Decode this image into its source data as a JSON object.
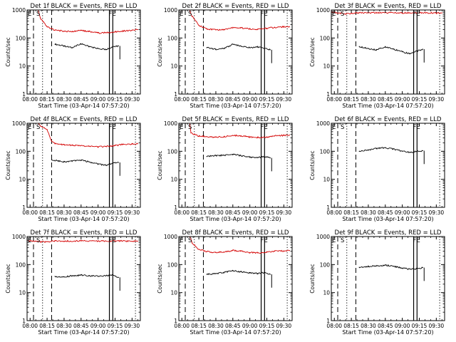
{
  "colors": {
    "events": "#000000",
    "lld": "#d40000",
    "axis": "#000000",
    "marker": "#000000"
  },
  "common": {
    "xlabel": "Start Time (03-Apr-14 07:57:20)",
    "ylabel": "Counts/sec",
    "xticklabels": [
      "08:00",
      "08:15",
      "08:30",
      "08:45",
      "09:00",
      "09:15",
      "09:30"
    ],
    "yticklabels": [
      "1",
      "10",
      "100",
      "1000"
    ],
    "marker_labels": [
      "E",
      "S",
      "FE"
    ]
  },
  "chart_data": [
    {
      "type": "line",
      "title": "Det 1f BLACK = Events, RED = LLD",
      "xlabel": "Start Time (03-Apr-14 07:57:20)",
      "ylabel": "Counts/sec",
      "yscale": "log",
      "ylim": [
        1,
        1000
      ],
      "x_ticks": [
        "08:00",
        "08:15",
        "08:30",
        "08:45",
        "09:00",
        "09:15",
        "09:30"
      ],
      "series": [
        {
          "name": "Events",
          "color": "#000000",
          "x": [
            "08:22",
            "08:30",
            "08:37",
            "08:45",
            "08:52",
            "09:00",
            "09:07",
            "09:13",
            "09:18"
          ],
          "values": [
            60,
            52,
            45,
            62,
            50,
            42,
            38,
            48,
            52
          ]
        },
        {
          "name": "LLD",
          "color": "#d40000",
          "x": [
            "08:07",
            "08:09",
            "08:15",
            "08:22",
            "08:30",
            "08:37",
            "08:45",
            "08:52",
            "09:00",
            "09:07",
            "09:15",
            "09:22",
            "09:30",
            "09:35"
          ],
          "values": [
            1000,
            520,
            250,
            190,
            175,
            168,
            185,
            170,
            152,
            155,
            165,
            178,
            188,
            200
          ]
        }
      ],
      "vlines": [
        {
          "x": "08:03",
          "style": "dashed"
        },
        {
          "x": "08:11",
          "style": "dotted"
        },
        {
          "x": "08:19",
          "style": "dashed"
        },
        {
          "x": "09:10",
          "style": "solid"
        },
        {
          "x": "09:13",
          "style": "solid"
        },
        {
          "x": "09:33",
          "style": "dotted"
        }
      ]
    },
    {
      "type": "line",
      "title": "Det 2f BLACK = Events, RED = LLD",
      "xlabel": "Start Time (03-Apr-14 07:57:20)",
      "ylabel": "Counts/sec",
      "yscale": "log",
      "ylim": [
        1,
        1000
      ],
      "x_ticks": [
        "08:00",
        "08:15",
        "08:30",
        "08:45",
        "09:00",
        "09:15",
        "09:30"
      ],
      "series": [
        {
          "name": "Events",
          "color": "#000000",
          "x": [
            "08:22",
            "08:30",
            "08:37",
            "08:45",
            "08:52",
            "09:00",
            "09:07",
            "09:13",
            "09:18"
          ],
          "values": [
            45,
            40,
            42,
            60,
            52,
            45,
            48,
            42,
            38
          ]
        },
        {
          "name": "LLD",
          "color": "#d40000",
          "x": [
            "08:07",
            "08:09",
            "08:15",
            "08:22",
            "08:30",
            "08:37",
            "08:45",
            "08:52",
            "09:00",
            "09:07",
            "09:15",
            "09:22",
            "09:30",
            "09:35"
          ],
          "values": [
            1000,
            600,
            280,
            210,
            195,
            200,
            240,
            230,
            210,
            205,
            225,
            240,
            250,
            255
          ]
        }
      ],
      "vlines": [
        {
          "x": "08:03",
          "style": "dashed"
        },
        {
          "x": "08:11",
          "style": "dotted"
        },
        {
          "x": "08:19",
          "style": "dashed"
        },
        {
          "x": "09:10",
          "style": "solid"
        },
        {
          "x": "09:13",
          "style": "solid"
        },
        {
          "x": "09:33",
          "style": "dotted"
        }
      ]
    },
    {
      "type": "line",
      "title": "Det 3f BLACK = Events, RED = LLD",
      "xlabel": "Start Time (03-Apr-14 07:57:20)",
      "ylabel": "Counts/sec",
      "yscale": "log",
      "ylim": [
        1,
        1000
      ],
      "x_ticks": [
        "08:00",
        "08:15",
        "08:30",
        "08:45",
        "09:00",
        "09:15",
        "09:30"
      ],
      "series": [
        {
          "name": "Events",
          "color": "#000000",
          "x": [
            "08:22",
            "08:30",
            "08:37",
            "08:45",
            "08:52",
            "09:00",
            "09:07",
            "09:13",
            "09:18"
          ],
          "values": [
            50,
            42,
            38,
            48,
            40,
            32,
            28,
            34,
            40
          ]
        },
        {
          "name": "LLD",
          "color": "#d40000",
          "x": [
            "07:57",
            "08:00",
            "08:05",
            "08:10",
            "08:15",
            "08:22",
            "08:30",
            "08:45",
            "09:00",
            "09:15",
            "09:30",
            "09:35"
          ],
          "values": [
            820,
            800,
            780,
            720,
            760,
            800,
            790,
            800,
            790,
            800,
            780,
            790
          ]
        }
      ],
      "vlines": [
        {
          "x": "08:03",
          "style": "dashed"
        },
        {
          "x": "08:11",
          "style": "dotted"
        },
        {
          "x": "08:19",
          "style": "dashed"
        },
        {
          "x": "09:10",
          "style": "solid"
        },
        {
          "x": "09:13",
          "style": "solid"
        },
        {
          "x": "09:33",
          "style": "dotted"
        }
      ]
    },
    {
      "type": "line",
      "title": "Det 4f BLACK = Events, RED = LLD",
      "xlabel": "Start Time (03-Apr-14 07:57:20)",
      "ylabel": "Counts/sec",
      "yscale": "log",
      "ylim": [
        1,
        1000
      ],
      "x_ticks": [
        "08:00",
        "08:15",
        "08:30",
        "08:45",
        "09:00",
        "09:15",
        "09:30"
      ],
      "series": [
        {
          "name": "Events",
          "color": "#000000",
          "x": [
            "08:19",
            "08:25",
            "08:30",
            "08:37",
            "08:45",
            "08:52",
            "09:00",
            "09:07",
            "09:13",
            "09:18"
          ],
          "values": [
            50,
            45,
            42,
            45,
            48,
            42,
            35,
            32,
            38,
            40
          ]
        },
        {
          "name": "LLD",
          "color": "#d40000",
          "x": [
            "08:07",
            "08:09",
            "08:15",
            "08:19",
            "08:22",
            "08:30",
            "08:37",
            "08:45",
            "08:52",
            "09:00",
            "09:07",
            "09:15",
            "09:22",
            "09:30",
            "09:35"
          ],
          "values": [
            1000,
            800,
            600,
            230,
            190,
            170,
            165,
            160,
            150,
            145,
            150,
            160,
            175,
            180,
            185
          ]
        }
      ],
      "vlines": [
        {
          "x": "08:03",
          "style": "dashed"
        },
        {
          "x": "08:11",
          "style": "dotted"
        },
        {
          "x": "08:19",
          "style": "dashed"
        },
        {
          "x": "09:10",
          "style": "solid"
        },
        {
          "x": "09:13",
          "style": "solid"
        },
        {
          "x": "09:33",
          "style": "dotted"
        }
      ]
    },
    {
      "type": "line",
      "title": "Det 5f BLACK = Events, RED = LLD",
      "xlabel": "Start Time (03-Apr-14 07:57:20)",
      "ylabel": "Counts/sec",
      "yscale": "log",
      "ylim": [
        1,
        1000
      ],
      "x_ticks": [
        "08:00",
        "08:15",
        "08:30",
        "08:45",
        "09:00",
        "09:15",
        "09:30"
      ],
      "series": [
        {
          "name": "Events",
          "color": "#000000",
          "x": [
            "08:22",
            "08:30",
            "08:37",
            "08:45",
            "08:52",
            "09:00",
            "09:07",
            "09:13",
            "09:18"
          ],
          "values": [
            65,
            70,
            72,
            78,
            70,
            62,
            60,
            64,
            58
          ]
        },
        {
          "name": "LLD",
          "color": "#d40000",
          "x": [
            "08:07",
            "08:08",
            "08:15",
            "08:22",
            "08:30",
            "08:37",
            "08:45",
            "08:52",
            "09:00",
            "09:07",
            "09:15",
            "09:22",
            "09:30",
            "09:35"
          ],
          "values": [
            1000,
            450,
            350,
            330,
            320,
            330,
            370,
            360,
            320,
            310,
            320,
            350,
            370,
            380
          ]
        }
      ],
      "vlines": [
        {
          "x": "08:03",
          "style": "dashed"
        },
        {
          "x": "08:11",
          "style": "dotted"
        },
        {
          "x": "08:19",
          "style": "dashed"
        },
        {
          "x": "09:10",
          "style": "solid"
        },
        {
          "x": "09:13",
          "style": "solid"
        },
        {
          "x": "09:33",
          "style": "dotted"
        }
      ]
    },
    {
      "type": "line",
      "title": "Det 6f BLACK = Events, RED = LLD",
      "xlabel": "Start Time (03-Apr-14 07:57:20)",
      "ylabel": "Counts/sec",
      "yscale": "log",
      "ylim": [
        1,
        1000
      ],
      "x_ticks": [
        "08:00",
        "08:15",
        "08:30",
        "08:45",
        "09:00",
        "09:15",
        "09:30"
      ],
      "series": [
        {
          "name": "Events",
          "color": "#000000",
          "x": [
            "08:22",
            "08:30",
            "08:37",
            "08:45",
            "08:52",
            "09:00",
            "09:07",
            "09:13",
            "09:18"
          ],
          "values": [
            100,
            110,
            125,
            135,
            120,
            100,
            92,
            100,
            105
          ]
        }
      ],
      "vlines": [
        {
          "x": "08:03",
          "style": "dashed"
        },
        {
          "x": "08:11",
          "style": "dotted"
        },
        {
          "x": "08:19",
          "style": "dashed"
        },
        {
          "x": "09:10",
          "style": "solid"
        },
        {
          "x": "09:13",
          "style": "solid"
        },
        {
          "x": "09:33",
          "style": "dotted"
        }
      ]
    },
    {
      "type": "line",
      "title": "Det 7f BLACK = Events, RED = LLD",
      "xlabel": "Start Time (03-Apr-14 07:57:20)",
      "ylabel": "Counts/sec",
      "yscale": "log",
      "ylim": [
        1,
        1000
      ],
      "x_ticks": [
        "08:00",
        "08:15",
        "08:30",
        "08:45",
        "09:00",
        "09:15",
        "09:30"
      ],
      "series": [
        {
          "name": "Events",
          "color": "#000000",
          "x": [
            "08:22",
            "08:30",
            "08:37",
            "08:45",
            "08:52",
            "09:00",
            "09:07",
            "09:13",
            "09:18"
          ],
          "values": [
            38,
            36,
            40,
            42,
            40,
            38,
            40,
            42,
            35
          ]
        },
        {
          "name": "LLD",
          "color": "#d40000",
          "x": [
            "07:57",
            "08:00",
            "08:05",
            "08:10",
            "08:15",
            "08:22",
            "08:30",
            "08:45",
            "09:00",
            "09:15",
            "09:30",
            "09:35"
          ],
          "values": [
            720,
            700,
            680,
            640,
            660,
            700,
            690,
            700,
            690,
            700,
            680,
            690
          ]
        }
      ],
      "vlines": [
        {
          "x": "08:03",
          "style": "dashed"
        },
        {
          "x": "08:11",
          "style": "dotted"
        },
        {
          "x": "08:19",
          "style": "dashed"
        },
        {
          "x": "09:10",
          "style": "solid"
        },
        {
          "x": "09:13",
          "style": "solid"
        },
        {
          "x": "09:33",
          "style": "dotted"
        }
      ]
    },
    {
      "type": "line",
      "title": "Det 8f BLACK = Events, RED = LLD",
      "xlabel": "Start Time (03-Apr-14 07:57:20)",
      "ylabel": "Counts/sec",
      "yscale": "log",
      "ylim": [
        1,
        1000
      ],
      "x_ticks": [
        "08:00",
        "08:15",
        "08:30",
        "08:45",
        "09:00",
        "09:15",
        "09:30"
      ],
      "series": [
        {
          "name": "Events",
          "color": "#000000",
          "x": [
            "08:22",
            "08:30",
            "08:37",
            "08:45",
            "08:52",
            "09:00",
            "09:07",
            "09:13",
            "09:18"
          ],
          "values": [
            45,
            48,
            52,
            60,
            55,
            50,
            48,
            52,
            45
          ]
        },
        {
          "name": "LLD",
          "color": "#d40000",
          "x": [
            "08:07",
            "08:09",
            "08:15",
            "08:22",
            "08:30",
            "08:37",
            "08:45",
            "08:52",
            "09:00",
            "09:07",
            "09:15",
            "09:22",
            "09:30",
            "09:35"
          ],
          "values": [
            1000,
            600,
            350,
            290,
            270,
            280,
            320,
            300,
            270,
            260,
            275,
            300,
            310,
            315
          ]
        }
      ],
      "vlines": [
        {
          "x": "08:03",
          "style": "dashed"
        },
        {
          "x": "08:11",
          "style": "dotted"
        },
        {
          "x": "08:19",
          "style": "dashed"
        },
        {
          "x": "09:10",
          "style": "solid"
        },
        {
          "x": "09:13",
          "style": "solid"
        },
        {
          "x": "09:33",
          "style": "dotted"
        }
      ]
    },
    {
      "type": "line",
      "title": "Det 9f BLACK = Events, RED = LLD",
      "xlabel": "Start Time (03-Apr-14 07:57:20)",
      "ylabel": "Counts/sec",
      "yscale": "log",
      "ylim": [
        1,
        1000
      ],
      "x_ticks": [
        "08:00",
        "08:15",
        "08:30",
        "08:45",
        "09:00",
        "09:15",
        "09:30"
      ],
      "series": [
        {
          "name": "Events",
          "color": "#000000",
          "x": [
            "08:22",
            "08:30",
            "08:37",
            "08:45",
            "08:52",
            "09:00",
            "09:07",
            "09:13",
            "09:18"
          ],
          "values": [
            80,
            85,
            90,
            95,
            88,
            75,
            68,
            72,
            78
          ]
        }
      ],
      "vlines": [
        {
          "x": "08:03",
          "style": "dashed"
        },
        {
          "x": "08:11",
          "style": "dotted"
        },
        {
          "x": "08:19",
          "style": "dashed"
        },
        {
          "x": "09:10",
          "style": "solid"
        },
        {
          "x": "09:13",
          "style": "solid"
        },
        {
          "x": "09:33",
          "style": "dotted"
        }
      ]
    }
  ]
}
